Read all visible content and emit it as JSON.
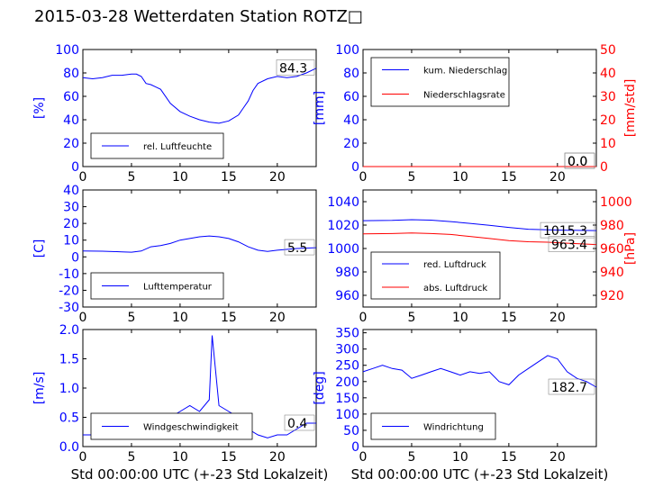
{
  "figure": {
    "title": "2015-03-28 Wetterdaten Station ROTZ□"
  },
  "colors": {
    "blue": "#0000ff",
    "red": "#ff0000",
    "black": "#000000"
  },
  "chart_data": [
    {
      "type": "line",
      "xlim": [
        0,
        24
      ],
      "xticks": [
        0,
        5,
        10,
        15,
        20
      ],
      "ylabel": "[%]",
      "ylim": [
        0,
        100
      ],
      "yticks": [
        0,
        20,
        40,
        60,
        80,
        100
      ],
      "grid": false,
      "legend_position": "lower-left",
      "series": [
        {
          "name": "rel. Luftfeuchte",
          "color": "#0000ff",
          "x": [
            0,
            1,
            2,
            3,
            4,
            5,
            5.5,
            6,
            6.5,
            7,
            7.5,
            8,
            9,
            10,
            11,
            12,
            13,
            14,
            15,
            16,
            16.5,
            17,
            17.5,
            18,
            19,
            20,
            21,
            22,
            23,
            24
          ],
          "y": [
            76,
            75,
            76,
            78,
            78,
            79,
            79,
            77,
            71,
            70,
            68,
            66,
            54,
            47,
            43,
            40,
            38,
            37,
            39,
            44,
            50,
            56,
            65,
            71,
            75,
            77,
            76,
            77,
            80,
            84
          ]
        }
      ],
      "annotations": [
        {
          "text": "84.3",
          "x": 24,
          "y": 84.3
        }
      ]
    },
    {
      "type": "line",
      "xlim": [
        0,
        24
      ],
      "xticks": [
        0,
        5,
        10,
        15,
        20
      ],
      "ylabel": "[mm]",
      "ylim": [
        0,
        100
      ],
      "yticks": [
        0,
        20,
        40,
        60,
        80,
        100
      ],
      "y2label": "[mm/std]",
      "y2lim": [
        0,
        50
      ],
      "y2ticks": [
        0,
        10,
        20,
        30,
        40,
        50
      ],
      "grid": false,
      "legend_position": "upper-left",
      "series": [
        {
          "name": "kum. Niederschlag",
          "color": "#0000ff",
          "axis": "left",
          "x": [
            0,
            24
          ],
          "y": [
            0,
            0
          ]
        },
        {
          "name": "Niederschlagsrate",
          "color": "#ff0000",
          "axis": "right",
          "x": [
            0,
            24
          ],
          "y": [
            0,
            0
          ]
        }
      ],
      "annotations": [
        {
          "text": "0.0",
          "x": 24,
          "y": 0
        },
        {
          "text": "0.0",
          "x": 24,
          "y": 0
        }
      ]
    },
    {
      "type": "line",
      "xlim": [
        0,
        24
      ],
      "xticks": [
        0,
        5,
        10,
        15,
        20
      ],
      "ylabel": "[C]",
      "ylim": [
        -30,
        40
      ],
      "yticks": [
        -30,
        -20,
        -10,
        0,
        10,
        20,
        30,
        40
      ],
      "grid": false,
      "legend_position": "lower-left",
      "series": [
        {
          "name": "Lufttemperatur",
          "color": "#0000ff",
          "x": [
            0,
            2,
            4,
            5,
            6,
            7,
            8,
            9,
            10,
            11,
            12,
            13,
            14,
            15,
            16,
            17,
            18,
            19,
            20,
            22,
            24
          ],
          "y": [
            3.5,
            3.4,
            3.0,
            2.8,
            3.5,
            6.0,
            6.8,
            8.0,
            10.0,
            11.0,
            12.0,
            12.5,
            12.0,
            11.0,
            9.0,
            6.0,
            4.0,
            3.3,
            4.0,
            5.0,
            5.5
          ]
        }
      ],
      "annotations": [
        {
          "text": "5.5",
          "x": 24,
          "y": 5.5
        }
      ]
    },
    {
      "type": "line",
      "xlim": [
        0,
        24
      ],
      "xticks": [
        0,
        5,
        10,
        15,
        20
      ],
      "ylabel": "",
      "ylim": [
        950,
        1050
      ],
      "yticks": [
        960,
        980,
        1000,
        1020,
        1040
      ],
      "y2label": "[hPa]",
      "y2lim": [
        910,
        1010
      ],
      "y2ticks": [
        920,
        940,
        960,
        980,
        1000
      ],
      "grid": false,
      "legend_position": "lower-left",
      "series": [
        {
          "name": "red. Luftdruck",
          "color": "#0000ff",
          "axis": "left",
          "x": [
            0,
            3,
            5,
            7,
            9,
            11,
            13,
            15,
            17,
            19,
            21,
            24
          ],
          "y": [
            1023.8,
            1024.0,
            1024.6,
            1024.2,
            1023.0,
            1021.5,
            1019.8,
            1018.0,
            1016.5,
            1016.0,
            1015.6,
            1015.3
          ]
        },
        {
          "name": "abs. Luftdruck",
          "color": "#ff0000",
          "axis": "right",
          "x": [
            0,
            3,
            5,
            7,
            9,
            11,
            13,
            15,
            17,
            19,
            21,
            24
          ],
          "y": [
            972.5,
            972.8,
            973.2,
            972.8,
            972.0,
            970.3,
            968.5,
            966.8,
            965.8,
            965.4,
            964.5,
            963.4
          ]
        }
      ],
      "annotations": [
        {
          "text": "1015.3",
          "x": 24,
          "y": 1015.3
        },
        {
          "text": "963.4",
          "x": 24,
          "y": 963.4
        }
      ]
    },
    {
      "type": "line",
      "xlim": [
        0,
        24
      ],
      "xticks": [
        0,
        5,
        10,
        15,
        20
      ],
      "xlabel": "Std 00:00:00 UTC (+-23 Std Lokalzeit)",
      "ylabel": "[m/s]",
      "ylim": [
        0,
        2.0
      ],
      "yticks": [
        0.0,
        0.5,
        1.0,
        1.5,
        2.0
      ],
      "grid": false,
      "legend_position": "lower-left",
      "series": [
        {
          "name": "Windgeschwindigkeit",
          "color": "#0000ff",
          "x": [
            0,
            1,
            2,
            3,
            4,
            5,
            6,
            7,
            8,
            9,
            10,
            11,
            12,
            13,
            13.3,
            14,
            15,
            16,
            17,
            18,
            19,
            20,
            21,
            22,
            23,
            24
          ],
          "y": [
            0.2,
            0.2,
            0.25,
            0.3,
            0.35,
            0.3,
            0.3,
            0.35,
            0.4,
            0.5,
            0.6,
            0.7,
            0.6,
            0.8,
            1.9,
            0.7,
            0.6,
            0.5,
            0.3,
            0.2,
            0.15,
            0.2,
            0.2,
            0.3,
            0.4,
            0.4
          ]
        }
      ],
      "annotations": [
        {
          "text": "0.4",
          "x": 24,
          "y": 0.4
        }
      ]
    },
    {
      "type": "line",
      "xlim": [
        0,
        24
      ],
      "xticks": [
        0,
        5,
        10,
        15,
        20
      ],
      "xlabel": "Std 00:00:00 UTC (+-23 Std Lokalzeit)",
      "ylabel": "[deg]",
      "ylim": [
        0,
        360
      ],
      "yticks": [
        0,
        50,
        100,
        150,
        200,
        250,
        300,
        350
      ],
      "grid": false,
      "legend_position": "lower-left",
      "series": [
        {
          "name": "Windrichtung",
          "color": "#0000ff",
          "x": [
            0,
            1,
            2,
            3,
            4,
            5,
            6,
            7,
            8,
            9,
            10,
            11,
            12,
            13,
            14,
            15,
            16,
            17,
            18,
            19,
            20,
            21,
            22,
            23,
            24
          ],
          "y": [
            230,
            240,
            250,
            240,
            235,
            210,
            220,
            230,
            240,
            230,
            220,
            230,
            225,
            230,
            200,
            190,
            220,
            240,
            260,
            280,
            270,
            230,
            210,
            200,
            182.7
          ]
        }
      ],
      "annotations": [
        {
          "text": "182.7",
          "x": 24,
          "y": 182.7
        }
      ]
    }
  ]
}
